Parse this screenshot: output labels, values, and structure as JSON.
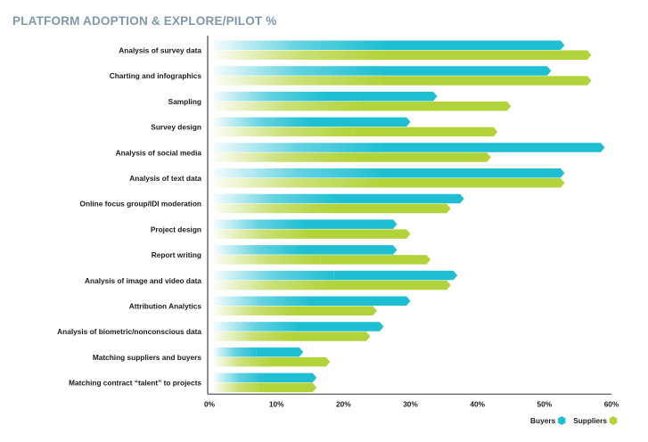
{
  "chart_data": {
    "type": "bar",
    "orientation": "horizontal",
    "title": "PLATFORM ADOPTION & EXPLORE/PILOT %",
    "xlabel": "",
    "ylabel": "",
    "xlim": [
      0,
      60
    ],
    "x_ticks": [
      "0%",
      "10%",
      "20%",
      "30%",
      "40%",
      "50%",
      "60%"
    ],
    "x_tick_values": [
      0,
      10,
      20,
      30,
      40,
      50,
      60
    ],
    "grid": false,
    "legend_position": "bottom-right",
    "categories": [
      "Analysis of survey data",
      "Charting and infographics",
      "Sampling",
      "Survey design",
      "Analysis of social media",
      "Analysis of text data",
      "Online focus group/IDI moderation",
      "Project design",
      "Report writing",
      "Analysis of image and video data",
      "Attribution Analytics",
      "Analysis of biometric/nonconscious data",
      "Matching suppliers and buyers",
      "Matching contract “talent” to projects"
    ],
    "series": [
      {
        "name": "Buyers",
        "color": "#1fbfd3",
        "values": [
          53,
          51,
          34,
          30,
          59,
          53,
          38,
          28,
          28,
          37,
          30,
          26,
          14,
          16
        ]
      },
      {
        "name": "Suppliers",
        "color": "#b3d33a",
        "values": [
          57,
          57,
          45,
          43,
          42,
          53,
          36,
          30,
          33,
          36,
          25,
          24,
          18,
          16
        ]
      }
    ]
  }
}
